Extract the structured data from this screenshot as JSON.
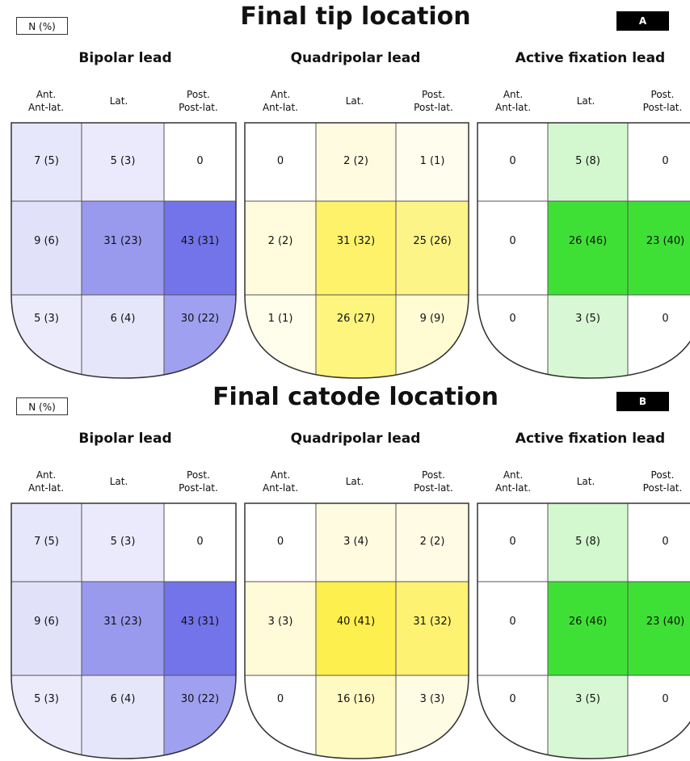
{
  "panels": [
    {
      "n_label": "N (%)",
      "title": "Final tip location",
      "letter": "A",
      "leads": [
        {
          "name": "Bipolar lead",
          "columns": [
            "Ant.\nAnt-lat.",
            "Lat.",
            "Post.\nPost-lat."
          ],
          "cells": [
            [
              "7 (5)",
              "5 (3)",
              "0"
            ],
            [
              "9 (6)",
              "31 (23)",
              "43 (31)"
            ],
            [
              "5 (3)",
              "6 (4)",
              "30 (22)"
            ]
          ],
          "fills": [
            [
              "#e7e7fb",
              "#eaeafc",
              "#ffffff"
            ],
            [
              "#e1e1f9",
              "#9999ee",
              "#7373ea"
            ],
            [
              "#ebebfc",
              "#e6e6fb",
              "#a0a0f1"
            ]
          ]
        },
        {
          "name": "Quadripolar lead",
          "columns": [
            "Ant.\nAnt-lat.",
            "Lat.",
            "Post.\nPost-lat."
          ],
          "cells": [
            [
              "0",
              "2 (2)",
              "1 (1)"
            ],
            [
              "2 (2)",
              "31 (32)",
              "25 (26)"
            ],
            [
              "1 (1)",
              "26 (27)",
              "9 (9)"
            ]
          ],
          "fills": [
            [
              "#ffffff",
              "#fffbe0",
              "#fffdee"
            ],
            [
              "#fffbdc",
              "#fdf26a",
              "#fdf488"
            ],
            [
              "#fffdec",
              "#fdf57e",
              "#fffbd2"
            ]
          ]
        },
        {
          "name": "Active fixation lead",
          "columns": [
            "Ant.\nAnt-lat.",
            "Lat.",
            "Post.\nPost-lat."
          ],
          "cells": [
            [
              "0",
              "5 (8)",
              "0"
            ],
            [
              "0",
              "26 (46)",
              "23 (40)"
            ],
            [
              "0",
              "3 (5)",
              "0"
            ]
          ],
          "fills": [
            [
              "#ffffff",
              "#d3f7cf",
              "#ffffff"
            ],
            [
              "#ffffff",
              "#3fe035",
              "#3fe035"
            ],
            [
              "#ffffff",
              "#d8f7d4",
              "#ffffff"
            ]
          ]
        }
      ]
    },
    {
      "n_label": "N (%)",
      "title": "Final catode location",
      "letter": "B",
      "leads": [
        {
          "name": "Bipolar lead",
          "columns": [
            "Ant.\nAnt-lat.",
            "Lat.",
            "Post.\nPost-lat."
          ],
          "cells": [
            [
              "7 (5)",
              "5 (3)",
              "0"
            ],
            [
              "9 (6)",
              "31 (23)",
              "43 (31)"
            ],
            [
              "5 (3)",
              "6 (4)",
              "30 (22)"
            ]
          ],
          "fills": [
            [
              "#e7e7fb",
              "#eaeafc",
              "#ffffff"
            ],
            [
              "#e1e1f9",
              "#9999ee",
              "#7373ea"
            ],
            [
              "#ebebfc",
              "#e6e6fb",
              "#a0a0f1"
            ]
          ]
        },
        {
          "name": "Quadripolar lead",
          "columns": [
            "Ant.\nAnt-lat.",
            "Lat.",
            "Post.\nPost-lat."
          ],
          "cells": [
            [
              "0",
              "3 (4)",
              "2 (2)"
            ],
            [
              "3 (3)",
              "40 (41)",
              "31 (32)"
            ],
            [
              "0",
              "16 (16)",
              "3 (3)"
            ]
          ],
          "fills": [
            [
              "#ffffff",
              "#fffbe0",
              "#fffbe4"
            ],
            [
              "#fffbd8",
              "#fdef4e",
              "#fdf272"
            ],
            [
              "#ffffff",
              "#fff9c2",
              "#fffce4"
            ]
          ]
        },
        {
          "name": "Active fixation lead",
          "columns": [
            "Ant.\nAnt-lat.",
            "Lat.",
            "Post.\nPost-lat."
          ],
          "cells": [
            [
              "0",
              "5 (8)",
              "0"
            ],
            [
              "0",
              "26 (46)",
              "23 (40)"
            ],
            [
              "0",
              "3 (5)",
              "0"
            ]
          ],
          "fills": [
            [
              "#ffffff",
              "#d3f7cf",
              "#ffffff"
            ],
            [
              "#ffffff",
              "#3fe035",
              "#3fe035"
            ],
            [
              "#ffffff",
              "#d8f7d4",
              "#ffffff"
            ]
          ]
        }
      ]
    }
  ]
}
